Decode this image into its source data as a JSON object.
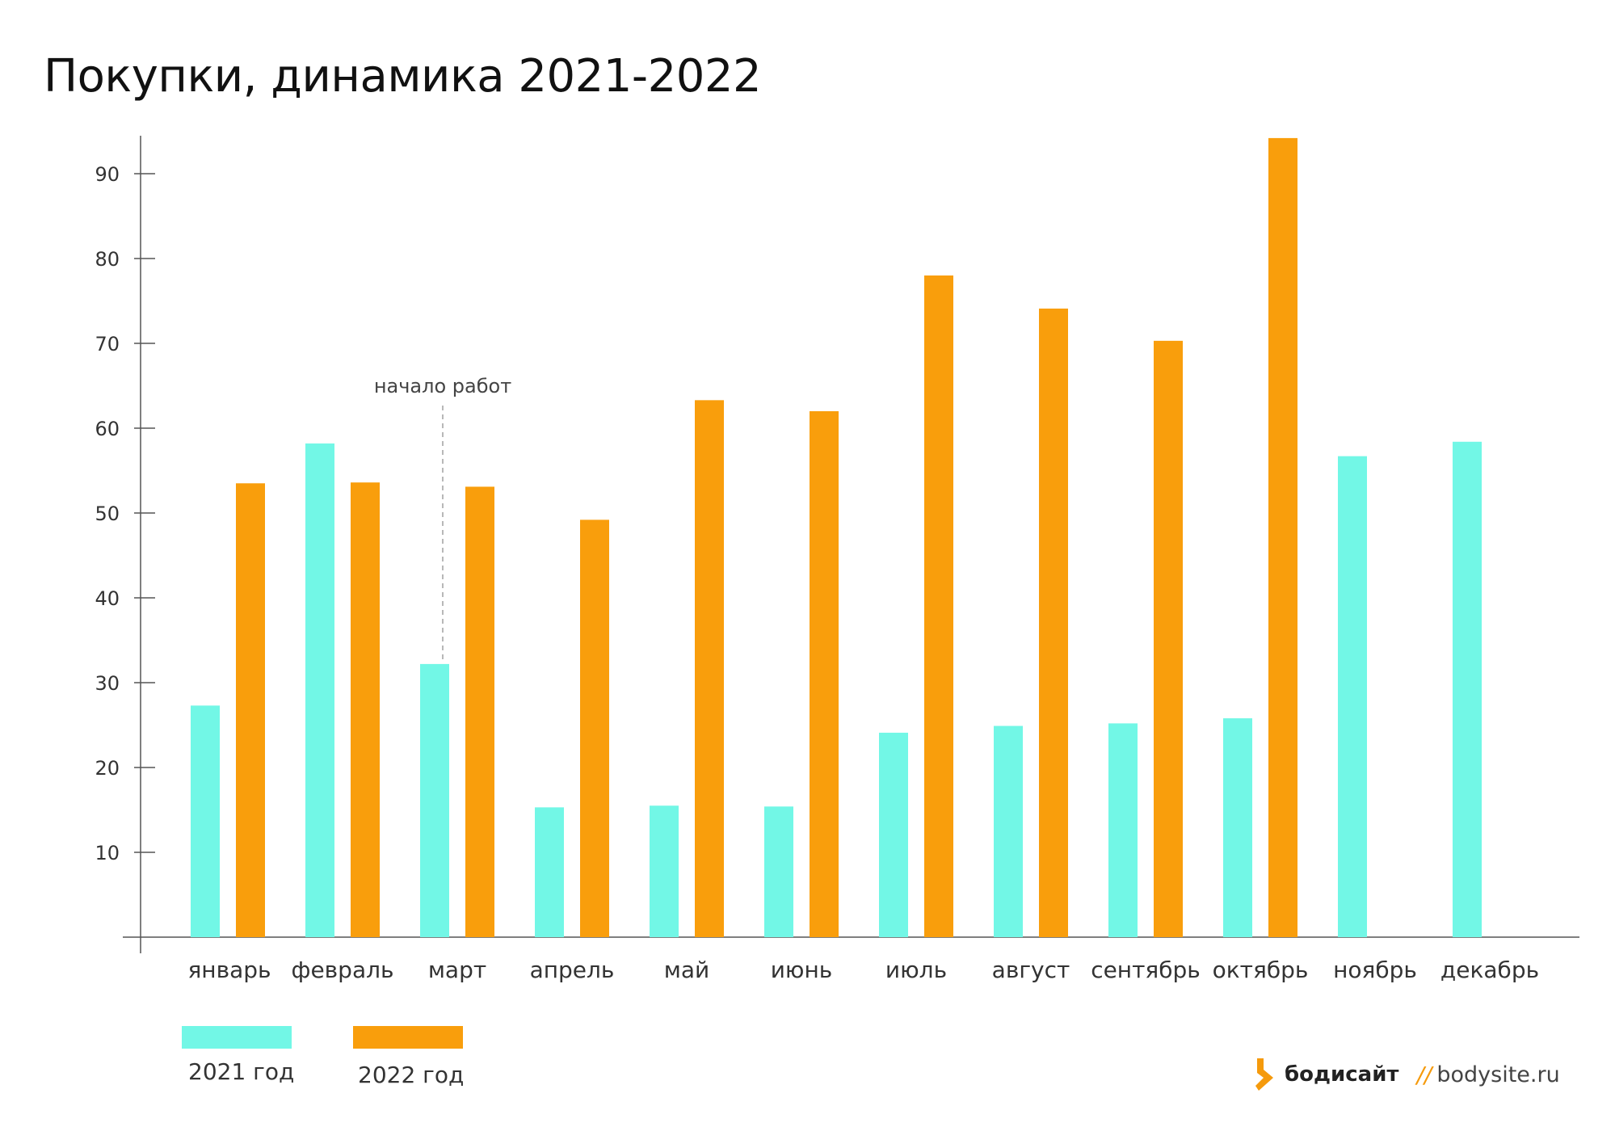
{
  "colors": {
    "series_2021": "#72f7e6",
    "series_2022": "#f99e0c",
    "brand_accent": "#f59a0c"
  },
  "chart_data": {
    "type": "bar",
    "title": "Покупки, динамика 2021-2022",
    "categories": [
      "январь",
      "февраль",
      "март",
      "апрель",
      "май",
      "июнь",
      "июль",
      "август",
      "сентябрь",
      "октябрь",
      "ноябрь",
      "декабрь"
    ],
    "series": [
      {
        "name": "2021 год",
        "color": "#72f7e6",
        "values": [
          27.3,
          58.2,
          32.2,
          15.3,
          15.5,
          15.4,
          24.1,
          24.9,
          25.2,
          25.8,
          56.7,
          58.4
        ]
      },
      {
        "name": "2022 год",
        "color": "#f99e0c",
        "values": [
          53.5,
          53.6,
          53.1,
          49.2,
          63.3,
          62.0,
          78.0,
          74.1,
          70.3,
          94.2,
          null,
          null
        ]
      }
    ],
    "yticks": [
      10,
      20,
      30,
      40,
      50,
      60,
      70,
      80,
      90
    ],
    "ylim": [
      0,
      95
    ],
    "annotations": [
      {
        "text": "начало работ",
        "category": "март",
        "value": 32.2
      }
    ],
    "legend_position": "bottom-left",
    "grid": false
  },
  "brand": {
    "name": "бодисайт",
    "separator": "//",
    "url": "bodysite.ru"
  }
}
